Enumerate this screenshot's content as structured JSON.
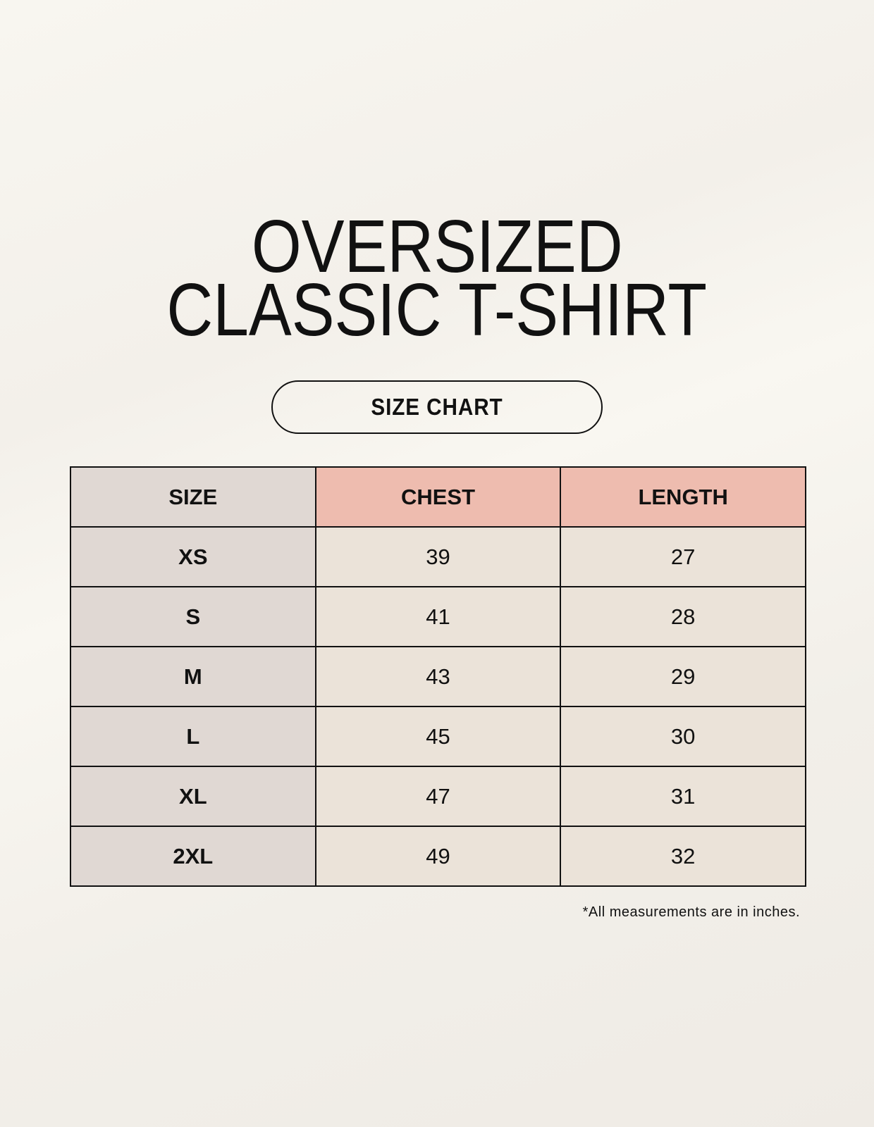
{
  "title": {
    "line1": "OVERSIZED",
    "line2": "CLASSIC T-SHIRT"
  },
  "badge": "SIZE CHART",
  "table": {
    "headers": [
      "SIZE",
      "CHEST",
      "LENGTH"
    ],
    "rows": [
      [
        "XS",
        "39",
        "27"
      ],
      [
        "S",
        "41",
        "28"
      ],
      [
        "M",
        "43",
        "29"
      ],
      [
        "L",
        "45",
        "30"
      ],
      [
        "XL",
        "47",
        "31"
      ],
      [
        "2XL",
        "49",
        "32"
      ]
    ]
  },
  "footnote": "*All measurements are in inches.",
  "colors": {
    "size_column": "#e0d8d3",
    "header_accent": "#eebcaf",
    "cell": "#ebe3d9"
  }
}
